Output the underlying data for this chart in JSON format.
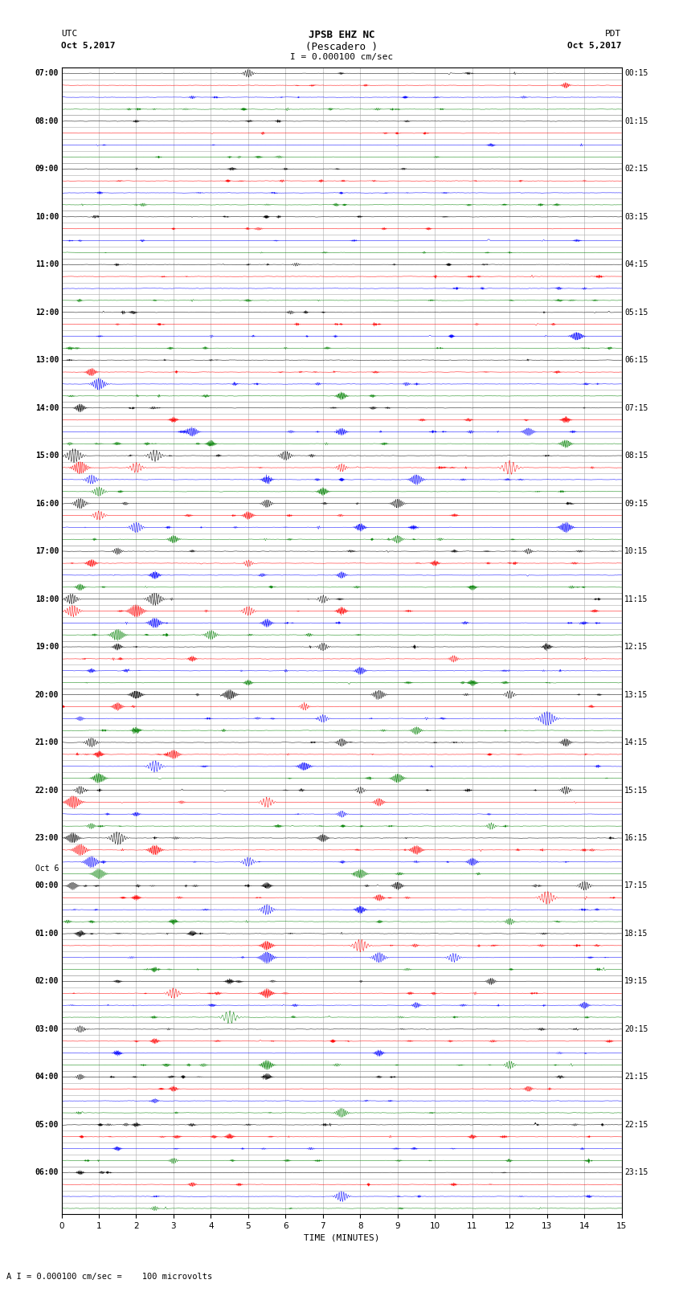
{
  "title_line1": "JPSB EHZ NC",
  "title_line2": "(Pescadero )",
  "scale_text": "I = 0.000100 cm/sec",
  "left_label_top": "UTC",
  "left_label_date": "Oct 5,2017",
  "right_label_top": "PDT",
  "right_label_date": "Oct 5,2017",
  "xlabel": "TIME (MINUTES)",
  "footer_text": "A I = 0.000100 cm/sec =    100 microvolts",
  "colors": [
    "black",
    "red",
    "blue",
    "green"
  ],
  "bg_color": "white",
  "xlim": [
    0,
    15
  ],
  "xticks": [
    0,
    1,
    2,
    3,
    4,
    5,
    6,
    7,
    8,
    9,
    10,
    11,
    12,
    13,
    14,
    15
  ],
  "samples_per_trace": 1800,
  "num_rows": 96,
  "noise_amplitude": 0.025,
  "left_utc_labels": [
    [
      "07:00",
      0
    ],
    [
      "08:00",
      4
    ],
    [
      "09:00",
      8
    ],
    [
      "10:00",
      12
    ],
    [
      "11:00",
      16
    ],
    [
      "12:00",
      20
    ],
    [
      "13:00",
      24
    ],
    [
      "14:00",
      28
    ],
    [
      "15:00",
      32
    ],
    [
      "16:00",
      36
    ],
    [
      "17:00",
      40
    ],
    [
      "18:00",
      44
    ],
    [
      "19:00",
      48
    ],
    [
      "20:00",
      52
    ],
    [
      "21:00",
      56
    ],
    [
      "22:00",
      60
    ],
    [
      "23:00",
      64
    ],
    [
      "Oct 6",
      67
    ],
    [
      "00:00",
      68
    ],
    [
      "01:00",
      72
    ],
    [
      "02:00",
      76
    ],
    [
      "03:00",
      80
    ],
    [
      "04:00",
      84
    ],
    [
      "05:00",
      88
    ],
    [
      "06:00",
      92
    ]
  ],
  "right_pdt_labels": [
    [
      "00:15",
      0
    ],
    [
      "01:15",
      4
    ],
    [
      "02:15",
      8
    ],
    [
      "03:15",
      12
    ],
    [
      "04:15",
      16
    ],
    [
      "05:15",
      20
    ],
    [
      "06:15",
      24
    ],
    [
      "07:15",
      28
    ],
    [
      "08:15",
      32
    ],
    [
      "09:15",
      36
    ],
    [
      "10:15",
      40
    ],
    [
      "11:15",
      44
    ],
    [
      "12:15",
      48
    ],
    [
      "13:15",
      52
    ],
    [
      "14:15",
      56
    ],
    [
      "15:15",
      60
    ],
    [
      "16:15",
      64
    ],
    [
      "17:15",
      68
    ],
    [
      "18:15",
      72
    ],
    [
      "19:15",
      76
    ],
    [
      "20:15",
      80
    ],
    [
      "21:15",
      84
    ],
    [
      "22:15",
      88
    ],
    [
      "23:15",
      92
    ]
  ]
}
